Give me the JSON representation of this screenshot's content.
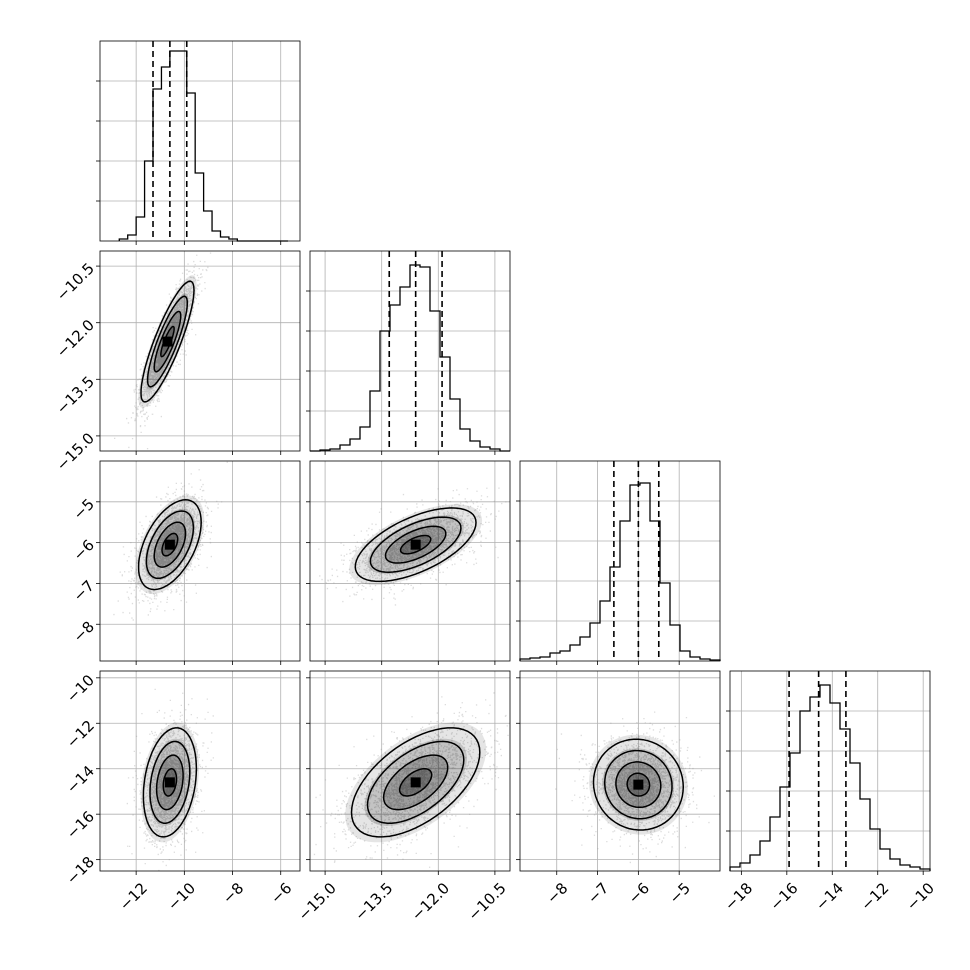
{
  "chart_data": {
    "type": "corner",
    "grid": true,
    "quantiles": [
      0.16,
      0.5,
      0.84
    ],
    "variables": [
      {
        "range": [
          -13.5,
          -5.2
        ],
        "ticks": [
          -12,
          -10,
          -8,
          -6
        ],
        "tick_labels": [
          "−12",
          "−10",
          "−8",
          "−6"
        ],
        "quantile_values": [
          -11.3,
          -10.6,
          -9.9
        ],
        "hist": {
          "start": -12.7,
          "bin_width": 0.35,
          "values": [
            0.01,
            0.03,
            0.12,
            0.4,
            0.76,
            0.87,
            0.95,
            0.95,
            0.74,
            0.34,
            0.15,
            0.05,
            0.02,
            0.01,
            0,
            0,
            0,
            0,
            0,
            0
          ]
        }
      },
      {
        "range": [
          -15.4,
          -10.1
        ],
        "ticks": [
          -15.0,
          -13.5,
          -12.0,
          -10.5
        ],
        "tick_labels": [
          "−15.0",
          "−13.5",
          "−12.0",
          "−10.5"
        ],
        "quantile_values": [
          -13.3,
          -12.6,
          -11.9
        ],
        "hist": {
          "start": -15.4,
          "bin_width": 0.265,
          "values": [
            0.0,
            0.005,
            0.01,
            0.03,
            0.06,
            0.12,
            0.3,
            0.6,
            0.73,
            0.82,
            0.93,
            0.92,
            0.7,
            0.47,
            0.26,
            0.11,
            0.05,
            0.02,
            0.01,
            0.0
          ]
        }
      },
      {
        "range": [
          -8.9,
          -4.0
        ],
        "ticks": [
          -8,
          -7,
          -6,
          -5
        ],
        "tick_labels": [
          "−8",
          "−7",
          "−6",
          "−5"
        ],
        "quantile_values": [
          -6.6,
          -6.0,
          -5.5
        ],
        "hist": {
          "start": -8.9,
          "bin_width": 0.245,
          "values": [
            0.01,
            0.015,
            0.02,
            0.04,
            0.05,
            0.08,
            0.12,
            0.19,
            0.3,
            0.47,
            0.7,
            0.88,
            0.89,
            0.7,
            0.39,
            0.18,
            0.05,
            0.02,
            0.01,
            0.005
          ]
        }
      },
      {
        "range": [
          -18.5,
          -9.7
        ],
        "ticks": [
          -18,
          -16,
          -14,
          -12,
          -10
        ],
        "tick_labels": [
          "−18",
          "−16",
          "−14",
          "−12",
          "−10"
        ],
        "quantile_values": [
          -15.9,
          -14.6,
          -13.4
        ],
        "hist": {
          "start": -18.5,
          "bin_width": 0.44,
          "values": [
            0.02,
            0.04,
            0.08,
            0.15,
            0.27,
            0.42,
            0.59,
            0.8,
            0.87,
            0.93,
            0.84,
            0.71,
            0.54,
            0.36,
            0.21,
            0.11,
            0.06,
            0.03,
            0.02,
            0.01
          ]
        }
      }
    ],
    "y_axis_ticks": [
      null,
      {
        "ticks": [
          -10.5,
          -12.0,
          -13.5,
          -15.0
        ],
        "tick_labels": [
          "−10.5",
          "−12.0",
          "−13.5",
          "−15.0"
        ]
      },
      {
        "ticks": [
          -5,
          -6,
          -7,
          -8
        ],
        "tick_labels": [
          "−5",
          "−6",
          "−7",
          "−8"
        ]
      },
      {
        "ticks": [
          -10,
          -12,
          -14,
          -16,
          -18
        ],
        "tick_labels": [
          "−10",
          "−12",
          "−14",
          "−16",
          "−18"
        ]
      }
    ],
    "pairs": [
      {
        "row": 1,
        "col": 0,
        "center": [
          -10.7,
          -12.5
        ],
        "sigma": [
          0.55,
          0.8
        ],
        "rho": 0.85
      },
      {
        "row": 2,
        "col": 0,
        "center": [
          -10.6,
          -6.05
        ],
        "sigma": [
          0.65,
          0.55
        ],
        "rho": 0.5
      },
      {
        "row": 2,
        "col": 1,
        "center": [
          -12.6,
          -6.05
        ],
        "sigma": [
          0.8,
          0.45
        ],
        "rho": 0.6
      },
      {
        "row": 3,
        "col": 0,
        "center": [
          -10.6,
          -14.6
        ],
        "sigma": [
          0.55,
          1.2
        ],
        "rho": 0.25
      },
      {
        "row": 3,
        "col": 1,
        "center": [
          -12.6,
          -14.6
        ],
        "sigma": [
          0.85,
          1.2
        ],
        "rho": 0.55
      },
      {
        "row": 3,
        "col": 2,
        "center": [
          -6.0,
          -14.7
        ],
        "sigma": [
          0.55,
          1.0
        ],
        "rho": -0.05
      }
    ]
  }
}
